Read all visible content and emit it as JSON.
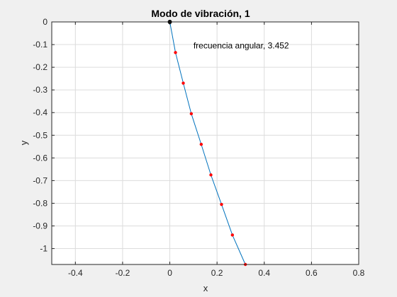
{
  "chart_data": {
    "type": "line",
    "title": "Modo de vibración, 1",
    "xlabel": "x",
    "ylabel": "y",
    "xlim": [
      -0.5,
      0.8
    ],
    "ylim": [
      -1.07,
      0
    ],
    "xticks": [
      -0.4,
      -0.2,
      0,
      0.2,
      0.4,
      0.6,
      0.8
    ],
    "xtick_labels": [
      "-0.4",
      "-0.2",
      "0",
      "0.2",
      "0.4",
      "0.6",
      "0.8"
    ],
    "yticks": [
      0,
      -0.1,
      -0.2,
      -0.3,
      -0.4,
      -0.5,
      -0.6,
      -0.7,
      -0.8,
      -0.9,
      -1
    ],
    "ytick_labels": [
      "0",
      "-0.1",
      "-0.2",
      "-0.3",
      "-0.4",
      "-0.5",
      "-0.6",
      "-0.7",
      "-0.8",
      "-0.9",
      "-1"
    ],
    "grid": true,
    "annotation": {
      "text": "frecuencia angular, 3.452",
      "x": 0.1,
      "y": -0.105
    },
    "series": [
      {
        "x": [
          0,
          0.024,
          0.057,
          0.091,
          0.133,
          0.174,
          0.219,
          0.265,
          0.32
        ],
        "y": [
          0,
          -0.135,
          -0.27,
          -0.405,
          -0.54,
          -0.675,
          -0.805,
          -0.94,
          -1.07
        ],
        "line_color": "#0072bd",
        "marker_color": "#ff0000",
        "anchor": {
          "x": 0,
          "y": 0,
          "color": "#000000"
        }
      }
    ]
  }
}
